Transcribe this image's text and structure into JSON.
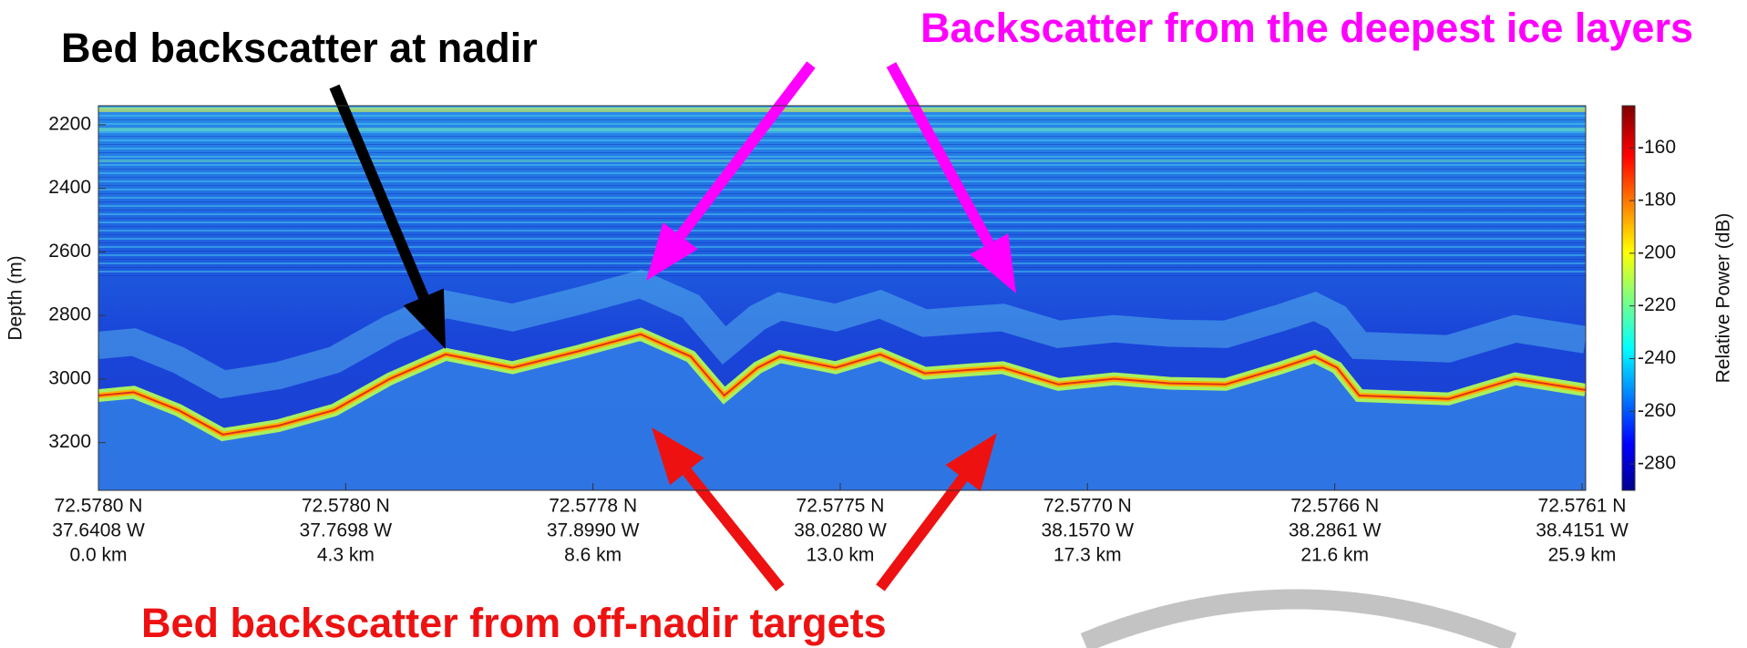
{
  "figure": {
    "y_axis": {
      "label": "Depth (m)",
      "ylim": [
        3350,
        2140
      ],
      "ticks": [
        2200,
        2400,
        2600,
        2800,
        3000,
        3200
      ]
    },
    "x_ticks": [
      {
        "lat": "72.5780 N",
        "lon": "37.6408 W",
        "dist": "0.0 km"
      },
      {
        "lat": "72.5780 N",
        "lon": "37.7698 W",
        "dist": "4.3 km"
      },
      {
        "lat": "72.5778 N",
        "lon": "37.8990 W",
        "dist": "8.6 km"
      },
      {
        "lat": "72.5775 N",
        "lon": "38.0280 W",
        "dist": "13.0 km"
      },
      {
        "lat": "72.5770 N",
        "lon": "38.1570 W",
        "dist": "17.3 km"
      },
      {
        "lat": "72.5766 N",
        "lon": "38.2861 W",
        "dist": "21.6 km"
      },
      {
        "lat": "72.5761 N",
        "lon": "38.4151 W",
        "dist": "25.9 km"
      }
    ],
    "colorbar": {
      "label": "Relative Power (dB)",
      "clim": [
        -290,
        -144
      ],
      "ticks": [
        -160,
        -180,
        -200,
        -220,
        -240,
        -260,
        -280
      ]
    },
    "annotations": {
      "nadir": "Bed backscatter at nadir",
      "deepest": "Backscatter from the deepest ice layers",
      "off_nadir": "Bed backscatter from off-nadir targets"
    }
  }
}
